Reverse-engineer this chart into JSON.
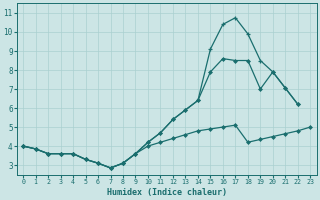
{
  "xlabel": "Humidex (Indice chaleur)",
  "xlim": [
    -0.5,
    23.5
  ],
  "ylim": [
    2.5,
    11.5
  ],
  "xticks": [
    0,
    1,
    2,
    3,
    4,
    5,
    6,
    7,
    8,
    9,
    10,
    11,
    12,
    13,
    14,
    15,
    16,
    17,
    18,
    19,
    20,
    21,
    22,
    23
  ],
  "yticks": [
    3,
    4,
    5,
    6,
    7,
    8,
    9,
    10,
    11
  ],
  "bg_color": "#cce5e5",
  "grid_color": "#aad0d0",
  "line_color": "#1a6e6e",
  "line_flat_x": [
    0,
    1,
    2,
    3,
    4,
    5,
    6,
    7,
    8,
    9,
    10,
    11,
    12,
    13,
    14,
    15,
    16,
    17,
    18,
    19,
    20,
    21,
    22,
    23
  ],
  "line_flat_y": [
    4.0,
    3.85,
    3.6,
    3.6,
    3.6,
    3.3,
    3.1,
    2.85,
    3.1,
    3.6,
    4.0,
    4.2,
    4.4,
    4.6,
    4.8,
    4.9,
    5.0,
    5.1,
    4.2,
    4.35,
    4.5,
    4.65,
    4.8,
    5.0
  ],
  "line_mid_x": [
    0,
    1,
    2,
    3,
    4,
    5,
    6,
    7,
    8,
    9,
    10,
    11,
    12,
    13,
    14,
    15,
    16,
    17,
    18,
    19,
    20,
    21,
    22
  ],
  "line_mid_y": [
    4.0,
    3.85,
    3.6,
    3.6,
    3.6,
    3.3,
    3.1,
    2.85,
    3.1,
    3.6,
    4.2,
    4.7,
    5.4,
    5.9,
    6.4,
    7.9,
    8.6,
    8.5,
    8.5,
    7.0,
    7.9,
    7.05,
    6.2
  ],
  "line_high_x": [
    0,
    1,
    2,
    3,
    4,
    5,
    6,
    7,
    8,
    9,
    10,
    11,
    12,
    13,
    14,
    15,
    16,
    17,
    18,
    19,
    20,
    21,
    22
  ],
  "line_high_y": [
    4.0,
    3.85,
    3.6,
    3.6,
    3.6,
    3.3,
    3.1,
    2.85,
    3.1,
    3.6,
    4.2,
    4.7,
    5.4,
    5.9,
    6.4,
    9.1,
    10.4,
    10.75,
    9.9,
    8.5,
    7.9,
    7.05,
    6.2
  ]
}
